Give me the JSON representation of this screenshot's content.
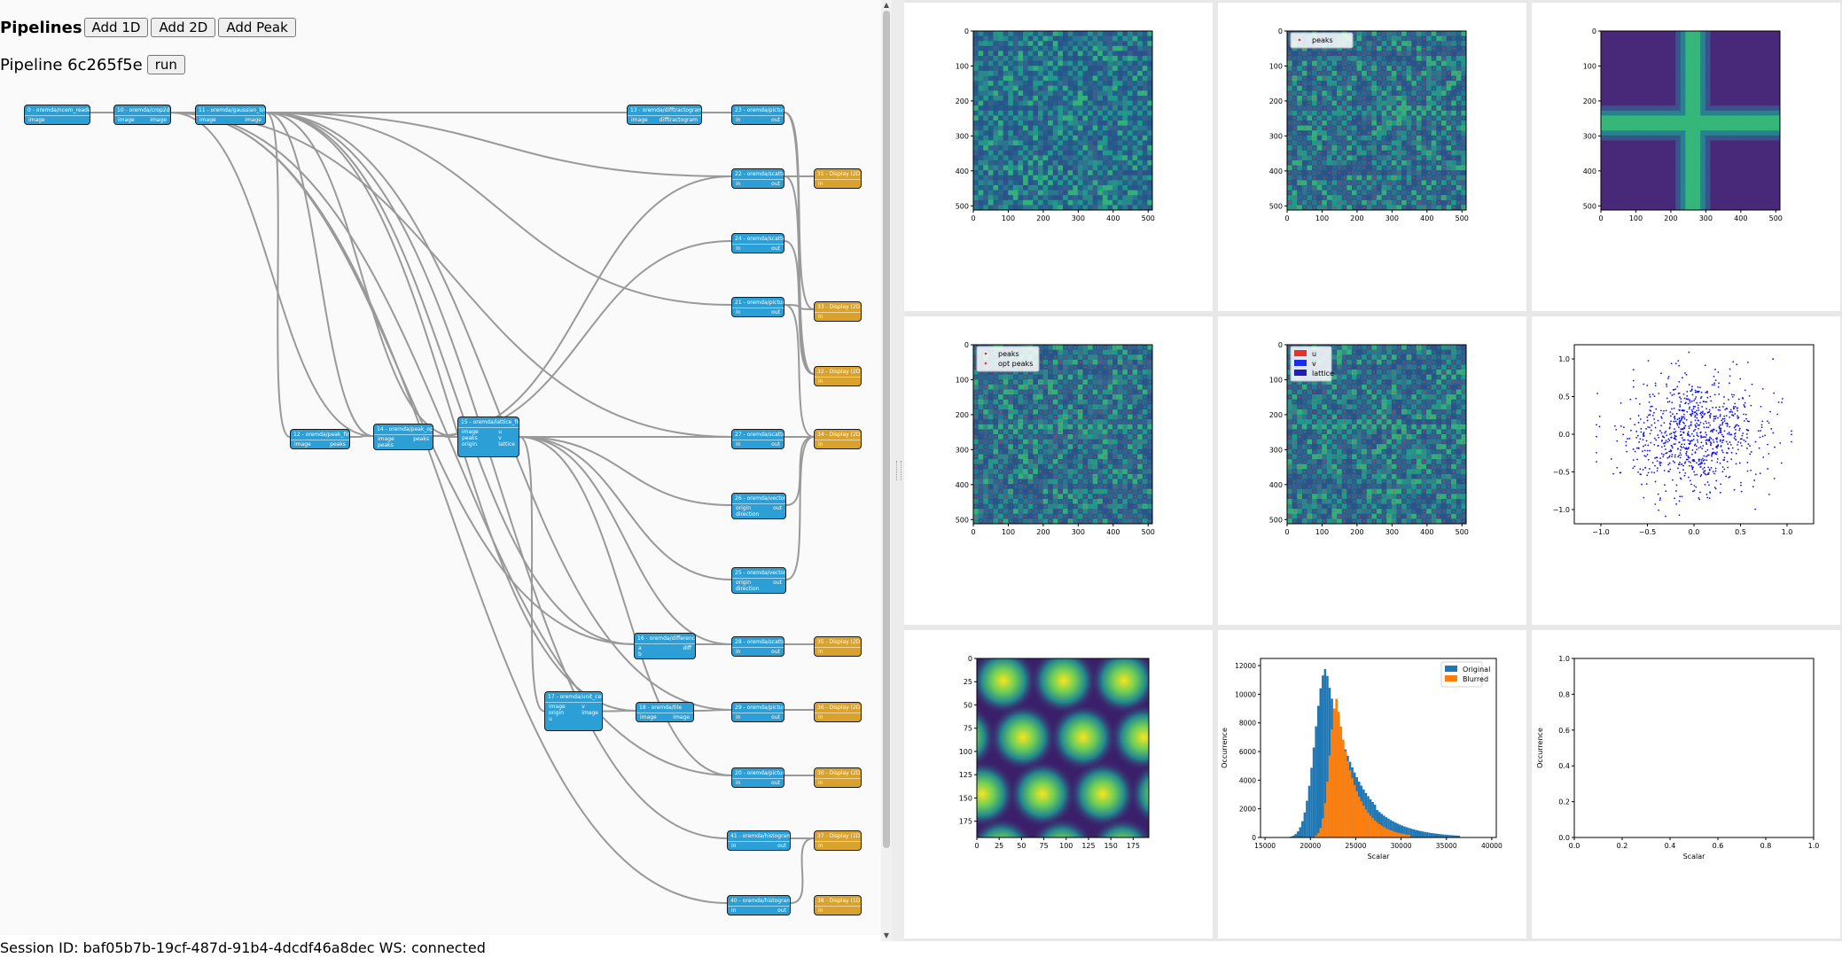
{
  "toolbar": {
    "title": "Pipelines",
    "add1d_label": "Add 1D",
    "add2d_label": "Add 2D",
    "addpeak_label": "Add Peak"
  },
  "pipeline": {
    "label": "Pipeline 6c265f5e",
    "run_label": "run"
  },
  "nodes": [
    {
      "id": "n0",
      "kind": "proc",
      "title": "0 - oremda/ncem_reader",
      "ports": [
        "image"
      ]
    },
    {
      "id": "n10",
      "kind": "proc",
      "title": "10 - oremda/crop2d",
      "ports": [
        "image",
        "image"
      ]
    },
    {
      "id": "n11",
      "kind": "proc",
      "title": "11 - oremda/gaussian_blur",
      "ports": [
        "image",
        "image"
      ]
    },
    {
      "id": "n13",
      "kind": "proc",
      "title": "13 - oremda/difftractogram",
      "ports": [
        "image",
        "difftractogram"
      ]
    },
    {
      "id": "n12",
      "kind": "proc",
      "title": "12 - oremda/peak_find",
      "ports": [
        "image",
        "peaks"
      ]
    },
    {
      "id": "n14",
      "kind": "proc",
      "title": "14 - oremda/peak_opt",
      "ports": [
        "image",
        "peaks",
        "peaks"
      ]
    },
    {
      "id": "n15",
      "kind": "proc",
      "title": "15 - oremda/lattice_find",
      "ports": [
        "image",
        "peaks",
        "origin",
        "u",
        "v",
        "lattice"
      ]
    },
    {
      "id": "n17",
      "kind": "proc",
      "title": "17 - oremda/unit_cell",
      "ports": [
        "image",
        "origin",
        "u",
        "v",
        "image"
      ]
    },
    {
      "id": "n16",
      "kind": "proc",
      "title": "16 - oremda/difference",
      "ports": [
        "a",
        "b",
        "diff"
      ]
    },
    {
      "id": "n18",
      "kind": "proc",
      "title": "18 - oremda/tile",
      "ports": [
        "image",
        "image"
      ]
    },
    {
      "id": "n23",
      "kind": "proc",
      "title": "23 - oremda/picture",
      "ports": [
        "in",
        "out"
      ]
    },
    {
      "id": "n22",
      "kind": "proc",
      "title": "22 - oremda/scatter",
      "ports": [
        "in",
        "out"
      ]
    },
    {
      "id": "n24",
      "kind": "proc",
      "title": "24 - oremda/scatter",
      "ports": [
        "in",
        "out"
      ]
    },
    {
      "id": "n21",
      "kind": "proc",
      "title": "21 - oremda/picture",
      "ports": [
        "in",
        "out"
      ]
    },
    {
      "id": "n27",
      "kind": "proc",
      "title": "27 - oremda/scatter",
      "ports": [
        "in",
        "out"
      ]
    },
    {
      "id": "n26",
      "kind": "proc",
      "title": "26 - oremda/vector",
      "ports": [
        "origin",
        "direction",
        "out"
      ]
    },
    {
      "id": "n25",
      "kind": "proc",
      "title": "25 - oremda/vector",
      "ports": [
        "origin",
        "direction",
        "out"
      ]
    },
    {
      "id": "n28",
      "kind": "proc",
      "title": "28 - oremda/scatter",
      "ports": [
        "in",
        "out"
      ]
    },
    {
      "id": "n29",
      "kind": "proc",
      "title": "29 - oremda/picture",
      "ports": [
        "in",
        "out"
      ]
    },
    {
      "id": "n20",
      "kind": "proc",
      "title": "20 - oremda/picture",
      "ports": [
        "in",
        "out"
      ]
    },
    {
      "id": "n41",
      "kind": "proc",
      "title": "41 - oremda/histograms",
      "ports": [
        "in",
        "out"
      ]
    },
    {
      "id": "n40",
      "kind": "proc",
      "title": "40 - oremda/histograms",
      "ports": [
        "in",
        "out"
      ]
    },
    {
      "id": "d31",
      "kind": "disp",
      "title": "31 - Display (2D)",
      "ports": [
        "in"
      ]
    },
    {
      "id": "d33",
      "kind": "disp",
      "title": "33 - Display (2D)",
      "ports": [
        "in"
      ]
    },
    {
      "id": "d32",
      "kind": "disp",
      "title": "32 - Display (2D)",
      "ports": [
        "in"
      ]
    },
    {
      "id": "d34",
      "kind": "disp",
      "title": "34 - Display (2D)",
      "ports": [
        "in"
      ]
    },
    {
      "id": "d35",
      "kind": "disp",
      "title": "35 - Display (2D)",
      "ports": [
        "in"
      ]
    },
    {
      "id": "d36",
      "kind": "disp",
      "title": "36 - Display (2D)",
      "ports": [
        "in"
      ]
    },
    {
      "id": "d30",
      "kind": "disp",
      "title": "30 - Display (2D)",
      "ports": [
        "in"
      ]
    },
    {
      "id": "d37",
      "kind": "disp",
      "title": "37 - Display (1D)",
      "ports": [
        "in"
      ]
    },
    {
      "id": "d38",
      "kind": "disp",
      "title": "38 - Display (1D)",
      "ports": [
        "in"
      ]
    }
  ],
  "plots": {
    "p1": {
      "xticks": [
        "0",
        "100",
        "200",
        "300",
        "400",
        "500"
      ],
      "yticks": [
        "0",
        "100",
        "200",
        "300",
        "400",
        "500"
      ]
    },
    "p2": {
      "xticks": [
        "0",
        "100",
        "200",
        "300",
        "400",
        "500"
      ],
      "yticks": [
        "0",
        "100",
        "200",
        "300",
        "400",
        "500"
      ],
      "legend": [
        "peaks"
      ]
    },
    "p3": {
      "xticks": [
        "0",
        "100",
        "200",
        "300",
        "400",
        "500"
      ],
      "yticks": [
        "0",
        "100",
        "200",
        "300",
        "400",
        "500"
      ]
    },
    "p4": {
      "xticks": [
        "0",
        "100",
        "200",
        "300",
        "400",
        "500"
      ],
      "yticks": [
        "0",
        "100",
        "200",
        "300",
        "400",
        "500"
      ],
      "legend": [
        "peaks",
        "opt peaks"
      ]
    },
    "p5": {
      "xticks": [
        "0",
        "100",
        "200",
        "300",
        "400",
        "500"
      ],
      "yticks": [
        "0",
        "100",
        "200",
        "300",
        "400",
        "500"
      ],
      "legend": [
        "u",
        "v",
        "lattice"
      ],
      "legend_colors": [
        "#e8312b",
        "#1a2ee6",
        "#1f1fb4"
      ]
    },
    "p6": {
      "xticks": [
        "−1.0",
        "−0.5",
        "0.0",
        "0.5",
        "1.0"
      ],
      "yticks": [
        "1.0",
        "0.5",
        "0.0",
        "−0.5",
        "−1.0"
      ],
      "point_color": "#1010ee"
    },
    "p7": {
      "xticks": [
        "0",
        "25",
        "50",
        "75",
        "100",
        "125",
        "150",
        "175"
      ],
      "yticks": [
        "0",
        "25",
        "50",
        "75",
        "100",
        "125",
        "150",
        "175"
      ]
    },
    "p8": {
      "xticks": [
        "15000",
        "20000",
        "25000",
        "30000",
        "35000",
        "40000"
      ],
      "yticks": [
        "0",
        "2000",
        "4000",
        "6000",
        "8000",
        "10000",
        "12000"
      ],
      "xlabel": "Scalar",
      "ylabel": "Occurrence",
      "legend": [
        "Original",
        "Blurred"
      ],
      "colors": [
        "#1f77b4",
        "#ff7f0e"
      ]
    },
    "p9": {
      "xticks": [
        "0.0",
        "0.2",
        "0.4",
        "0.6",
        "0.8",
        "1.0"
      ],
      "yticks": [
        "0.0",
        "0.2",
        "0.4",
        "0.6",
        "0.8",
        "1.0"
      ],
      "xlabel": "Scalar",
      "ylabel": "Occurrence"
    }
  },
  "status": {
    "text": "Session ID: baf05b7b-19cf-487d-91b4-4dcdf46a8dec WS: connected"
  }
}
